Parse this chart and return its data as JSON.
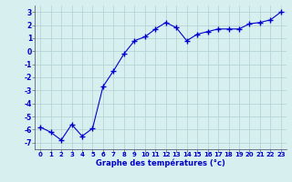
{
  "x": [
    0,
    1,
    2,
    3,
    4,
    5,
    6,
    7,
    8,
    9,
    10,
    11,
    12,
    13,
    14,
    15,
    16,
    17,
    18,
    19,
    20,
    21,
    22,
    23
  ],
  "y": [
    -5.8,
    -6.2,
    -6.8,
    -5.6,
    -6.5,
    -5.9,
    -2.7,
    -1.5,
    -0.2,
    0.8,
    1.1,
    1.7,
    2.2,
    1.8,
    0.8,
    1.3,
    1.5,
    1.7,
    1.7,
    1.7,
    2.1,
    2.2,
    2.4,
    3.0
  ],
  "xlabel": "Graphe des températures (°c)",
  "line_color": "#0000cc",
  "marker_color": "#0000cc",
  "bg_color": "#d8efef",
  "grid_color": "#b0d0d0",
  "ylim": [
    -7.5,
    3.5
  ],
  "xlim": [
    -0.5,
    23.5
  ],
  "yticks": [
    -7,
    -6,
    -5,
    -4,
    -3,
    -2,
    -1,
    0,
    1,
    2,
    3
  ],
  "xticks": [
    0,
    1,
    2,
    3,
    4,
    5,
    6,
    7,
    8,
    9,
    10,
    11,
    12,
    13,
    14,
    15,
    16,
    17,
    18,
    19,
    20,
    21,
    22,
    23
  ]
}
